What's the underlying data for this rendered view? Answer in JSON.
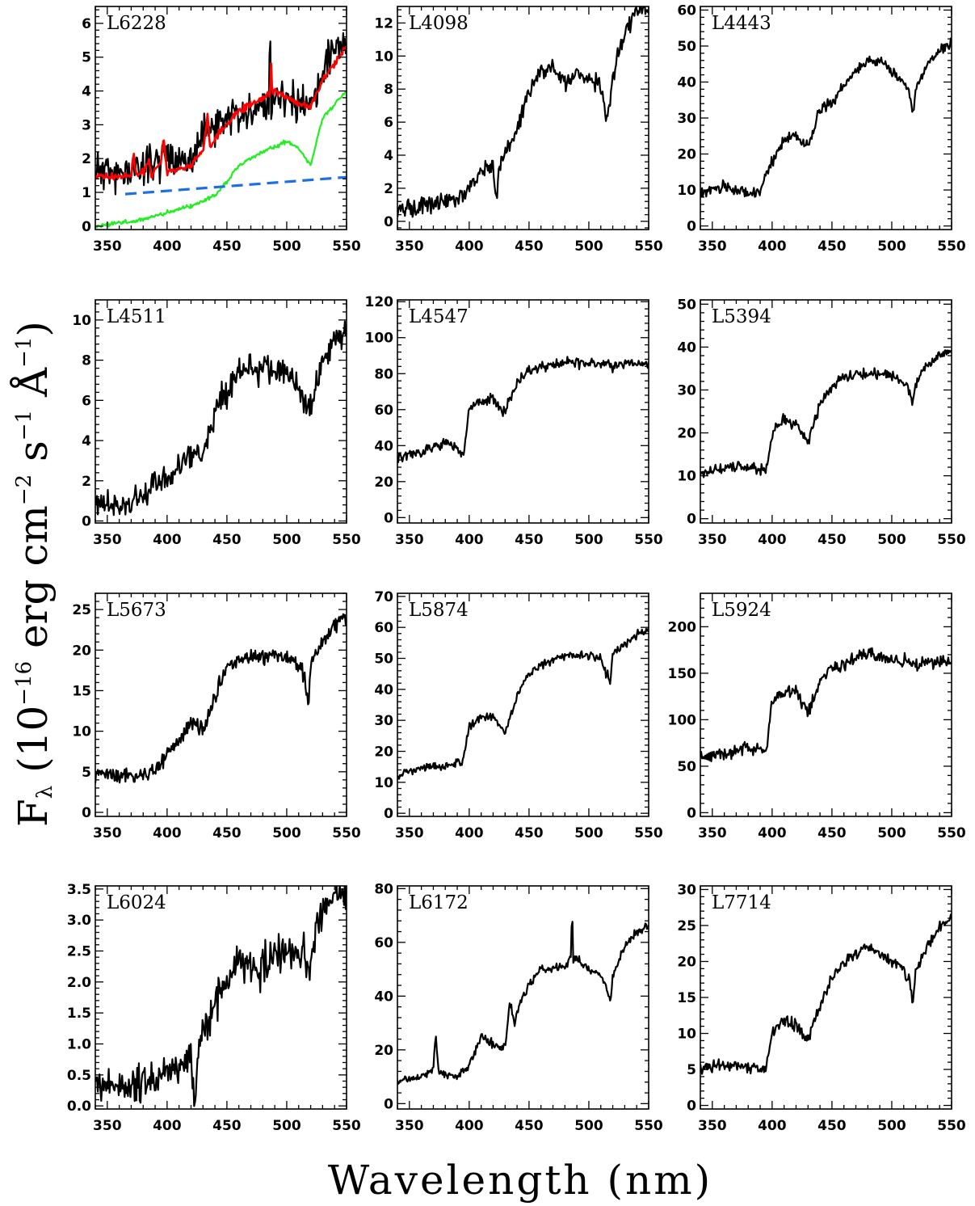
{
  "figure": {
    "xlabel": "Wavelength (nm)",
    "ylabel_main": "F",
    "ylabel_sub": "λ",
    "ylabel_rest": " (10",
    "ylabel_exp1": "−16",
    "ylabel_erg": " erg cm",
    "ylabel_exp2": "−2",
    "ylabel_s": " s",
    "ylabel_exp3": "−1",
    "ylabel_ang": " Å",
    "ylabel_exp4": "−1",
    "ylabel_close": ")"
  },
  "colors": {
    "spectrum": "#000000",
    "model": "#ff0000",
    "stellar": "#22ee22",
    "agn": "#1e6fe6"
  },
  "chart_data": [
    {
      "type": "line",
      "label": "L6228",
      "xlim": [
        340,
        550
      ],
      "ylim": [
        -0.1,
        6.5
      ],
      "xticks": [
        350,
        400,
        450,
        500,
        550
      ],
      "yticks": [
        0,
        1,
        2,
        3,
        4,
        5,
        6
      ],
      "ytick_labels": [
        "0",
        "1",
        "2",
        "3",
        "4",
        "5",
        "6"
      ],
      "series": [
        {
          "x": [
            340,
            360,
            380,
            400,
            420,
            430,
            440,
            450,
            460,
            470,
            480,
            485,
            486,
            487,
            490,
            500,
            510,
            520,
            530,
            540,
            550
          ],
          "y": [
            1.7,
            1.5,
            1.8,
            2.1,
            1.9,
            2.6,
            3.0,
            3.3,
            3.2,
            3.3,
            3.6,
            3.5,
            6.5,
            3.6,
            4.0,
            3.7,
            3.6,
            3.5,
            4.6,
            5.4,
            5.3
          ],
          "noise": 0.55,
          "seed": 11
        },
        {
          "x": [
            340,
            370,
            372,
            374,
            380,
            385,
            387,
            390,
            395,
            397,
            400,
            410,
            420,
            430,
            434,
            436,
            440,
            450,
            460,
            470,
            480,
            486,
            487,
            488,
            490,
            500,
            510,
            520,
            530,
            540,
            550
          ],
          "y": [
            1.45,
            1.5,
            2.2,
            1.5,
            1.6,
            2.0,
            1.4,
            1.7,
            1.9,
            2.6,
            1.6,
            1.7,
            1.8,
            2.2,
            3.3,
            2.3,
            2.6,
            3.0,
            3.4,
            3.6,
            3.8,
            3.9,
            4.9,
            3.9,
            4.0,
            3.8,
            3.6,
            3.5,
            4.3,
            4.8,
            5.3
          ],
          "noise": 0.1,
          "seed": 12
        },
        {
          "x": [
            340,
            360,
            380,
            400,
            420,
            440,
            450,
            460,
            480,
            500,
            510,
            520,
            530,
            540,
            550
          ],
          "y": [
            0.0,
            0.1,
            0.2,
            0.4,
            0.6,
            0.9,
            1.3,
            1.8,
            2.2,
            2.5,
            2.3,
            1.8,
            3.2,
            3.6,
            4.0
          ],
          "noise": 0.06,
          "seed": 13
        },
        {
          "x": [
            340,
            550
          ],
          "y": [
            1.4,
            1.45
          ],
          "noise": 0,
          "seed": 14
        }
      ]
    },
    {
      "type": "line",
      "label": "L4098",
      "xlim": [
        340,
        550
      ],
      "ylim": [
        -0.5,
        13
      ],
      "xticks": [
        350,
        400,
        450,
        500,
        550
      ],
      "yticks": [
        0,
        2,
        4,
        6,
        8,
        10,
        12
      ],
      "ytick_labels": [
        "0",
        "2",
        "4",
        "6",
        "8",
        "10",
        "12"
      ],
      "series": [
        {
          "x": [
            340,
            360,
            380,
            395,
            400,
            410,
            420,
            423,
            425,
            430,
            440,
            450,
            460,
            470,
            480,
            490,
            500,
            510,
            515,
            520,
            530,
            540,
            550
          ],
          "y": [
            0.6,
            1.0,
            1.2,
            1.5,
            2.0,
            3.0,
            3.3,
            1.2,
            3.3,
            4.0,
            5.5,
            8.0,
            9.0,
            9.3,
            8.3,
            9.0,
            8.6,
            8.3,
            6.0,
            8.8,
            11.5,
            12.7,
            12.8
          ],
          "noise": 0.5,
          "seed": 21
        }
      ]
    },
    {
      "type": "line",
      "label": "L4443",
      "xlim": [
        340,
        550
      ],
      "ylim": [
        -1,
        61
      ],
      "xticks": [
        350,
        400,
        450,
        500,
        550
      ],
      "yticks": [
        0,
        10,
        20,
        30,
        40,
        50,
        60
      ],
      "ytick_labels": [
        "0",
        "10",
        "20",
        "30",
        "40",
        "50",
        "60"
      ],
      "series": [
        {
          "x": [
            340,
            360,
            380,
            390,
            400,
            410,
            420,
            430,
            440,
            450,
            460,
            470,
            480,
            490,
            500,
            510,
            515,
            518,
            520,
            530,
            540,
            550
          ],
          "y": [
            9,
            11,
            9,
            10,
            18,
            24,
            25,
            22,
            32,
            34,
            39,
            43,
            46,
            46,
            43,
            40,
            37,
            31,
            38,
            45,
            49,
            51
          ],
          "noise": 1.5,
          "seed": 31
        }
      ]
    },
    {
      "type": "line",
      "label": "L4511",
      "xlim": [
        340,
        550
      ],
      "ylim": [
        -0.1,
        11
      ],
      "xticks": [
        350,
        400,
        450,
        500,
        550
      ],
      "yticks": [
        0,
        2,
        4,
        6,
        8,
        10
      ],
      "ytick_labels": [
        "0",
        "2",
        "4",
        "6",
        "8",
        "10"
      ],
      "series": [
        {
          "x": [
            340,
            360,
            380,
            400,
            420,
            430,
            440,
            450,
            460,
            470,
            480,
            490,
            500,
            510,
            515,
            520,
            530,
            540,
            550
          ],
          "y": [
            1.0,
            0.6,
            1.2,
            2.2,
            3.2,
            3.0,
            5.5,
            6.5,
            7.6,
            7.5,
            7.6,
            7.6,
            7.3,
            6.8,
            5.8,
            5.6,
            7.8,
            9.0,
            9.3
          ],
          "noise": 0.7,
          "seed": 41
        }
      ]
    },
    {
      "type": "line",
      "label": "L4547",
      "xlim": [
        340,
        550
      ],
      "ylim": [
        -3,
        121
      ],
      "xticks": [
        350,
        400,
        450,
        500,
        550
      ],
      "yticks": [
        0,
        20,
        40,
        60,
        80,
        100,
        120
      ],
      "ytick_labels": [
        "0",
        "20",
        "40",
        "60",
        "80",
        "100",
        "120"
      ],
      "series": [
        {
          "x": [
            340,
            360,
            380,
            395,
            400,
            410,
            420,
            430,
            440,
            450,
            460,
            480,
            500,
            520,
            540,
            550
          ],
          "y": [
            33,
            36,
            42,
            36,
            60,
            64,
            66,
            58,
            76,
            82,
            84,
            86,
            86,
            84,
            86,
            86
          ],
          "noise": 3,
          "seed": 51
        }
      ]
    },
    {
      "type": "line",
      "label": "L5394",
      "xlim": [
        340,
        550
      ],
      "ylim": [
        -1,
        51
      ],
      "xticks": [
        350,
        400,
        450,
        500,
        550
      ],
      "yticks": [
        0,
        10,
        20,
        30,
        40,
        50
      ],
      "ytick_labels": [
        "0",
        "10",
        "20",
        "30",
        "40",
        "50"
      ],
      "series": [
        {
          "x": [
            340,
            360,
            380,
            395,
            400,
            410,
            420,
            430,
            440,
            450,
            460,
            480,
            500,
            510,
            515,
            518,
            520,
            530,
            540,
            550
          ],
          "y": [
            10,
            12,
            12,
            11,
            20,
            23,
            22,
            18,
            27,
            31,
            33,
            34,
            33,
            32,
            30,
            27,
            32,
            36,
            38,
            39
          ],
          "noise": 1.3,
          "seed": 61
        }
      ]
    },
    {
      "type": "line",
      "label": "L5673",
      "xlim": [
        340,
        550
      ],
      "ylim": [
        -0.5,
        27
      ],
      "xticks": [
        350,
        400,
        450,
        500,
        550
      ],
      "yticks": [
        0,
        5,
        10,
        15,
        20,
        25
      ],
      "ytick_labels": [
        "0",
        "5",
        "10",
        "15",
        "20",
        "25"
      ],
      "series": [
        {
          "x": [
            340,
            360,
            380,
            400,
            420,
            430,
            440,
            450,
            460,
            470,
            480,
            490,
            500,
            510,
            515,
            518,
            520,
            530,
            540,
            550
          ],
          "y": [
            5,
            4.5,
            4.5,
            7,
            11,
            10,
            14,
            18,
            19,
            19,
            19,
            20,
            19,
            18,
            17,
            13,
            18,
            21,
            23,
            24
          ],
          "noise": 1.0,
          "seed": 71
        }
      ]
    },
    {
      "type": "line",
      "label": "L5874",
      "xlim": [
        340,
        550
      ],
      "ylim": [
        -1,
        71
      ],
      "xticks": [
        350,
        400,
        450,
        500,
        550
      ],
      "yticks": [
        0,
        10,
        20,
        30,
        40,
        50,
        60,
        70
      ],
      "ytick_labels": [
        "0",
        "10",
        "20",
        "30",
        "40",
        "50",
        "60",
        "70"
      ],
      "series": [
        {
          "x": [
            340,
            360,
            380,
            395,
            400,
            410,
            420,
            430,
            440,
            450,
            460,
            480,
            500,
            510,
            518,
            520,
            530,
            540,
            550
          ],
          "y": [
            12,
            15,
            15,
            17,
            28,
            31,
            31,
            26,
            38,
            45,
            48,
            51,
            51,
            50,
            42,
            51,
            55,
            58,
            59
          ],
          "noise": 1.5,
          "seed": 81
        }
      ]
    },
    {
      "type": "line",
      "label": "L5924",
      "xlim": [
        340,
        550
      ],
      "ylim": [
        -4,
        236
      ],
      "xticks": [
        350,
        400,
        450,
        500,
        550
      ],
      "yticks": [
        0,
        50,
        100,
        150,
        200
      ],
      "ytick_labels": [
        "0",
        "50",
        "100",
        "150",
        "200"
      ],
      "series": [
        {
          "x": [
            340,
            360,
            380,
            395,
            400,
            410,
            420,
            430,
            440,
            450,
            460,
            480,
            500,
            520,
            540,
            550
          ],
          "y": [
            60,
            62,
            70,
            65,
            120,
            130,
            132,
            105,
            145,
            155,
            160,
            172,
            165,
            160,
            162,
            165
          ],
          "noise": 7,
          "seed": 91
        }
      ]
    },
    {
      "type": "line",
      "label": "L6024",
      "xlim": [
        340,
        550
      ],
      "ylim": [
        -0.05,
        3.55
      ],
      "xticks": [
        350,
        400,
        450,
        500,
        550
      ],
      "yticks": [
        0,
        0.5,
        1.0,
        1.5,
        2.0,
        2.5,
        3.0,
        3.5
      ],
      "ytick_labels": [
        "0.0",
        "0.5",
        "1.0",
        "1.5",
        "2.0",
        "2.5",
        "3.0",
        "3.5"
      ],
      "series": [
        {
          "x": [
            340,
            360,
            380,
            400,
            410,
            420,
            423,
            426,
            430,
            440,
            450,
            460,
            470,
            480,
            490,
            500,
            510,
            520,
            525,
            530,
            540,
            550
          ],
          "y": [
            0.4,
            0.3,
            0.4,
            0.5,
            0.7,
            0.8,
            0.0,
            0.9,
            1.2,
            1.6,
            2.0,
            2.4,
            2.3,
            2.2,
            2.5,
            2.4,
            2.5,
            2.2,
            2.9,
            3.2,
            3.5,
            3.3
          ],
          "noise": 0.3,
          "seed": 101
        }
      ]
    },
    {
      "type": "line",
      "label": "L6172",
      "xlim": [
        340,
        550
      ],
      "ylim": [
        -2,
        81
      ],
      "xticks": [
        350,
        400,
        450,
        500,
        550
      ],
      "yticks": [
        0,
        20,
        40,
        60,
        80
      ],
      "ytick_labels": [
        "0",
        "20",
        "40",
        "60",
        "80"
      ],
      "series": [
        {
          "x": [
            340,
            360,
            370,
            372,
            374,
            380,
            390,
            400,
            410,
            420,
            430,
            434,
            438,
            440,
            450,
            460,
            480,
            485,
            486,
            487,
            490,
            500,
            510,
            515,
            518,
            520,
            530,
            540,
            550
          ],
          "y": [
            8,
            10,
            12,
            27,
            12,
            11,
            10,
            14,
            25,
            22,
            21,
            38,
            30,
            35,
            44,
            50,
            51,
            54,
            75,
            53,
            54,
            50,
            48,
            43,
            37,
            48,
            58,
            64,
            66
          ],
          "noise": 1.5,
          "seed": 111
        }
      ]
    },
    {
      "type": "line",
      "label": "L7714",
      "xlim": [
        340,
        550
      ],
      "ylim": [
        -0.5,
        30.5
      ],
      "xticks": [
        350,
        400,
        450,
        500,
        550
      ],
      "yticks": [
        0,
        5,
        10,
        15,
        20,
        25,
        30
      ],
      "ytick_labels": [
        "0",
        "5",
        "10",
        "15",
        "20",
        "25",
        "30"
      ],
      "series": [
        {
          "x": [
            340,
            360,
            380,
            395,
            400,
            410,
            420,
            430,
            440,
            450,
            460,
            470,
            480,
            490,
            500,
            510,
            515,
            518,
            520,
            530,
            540,
            550
          ],
          "y": [
            5,
            5.5,
            5.5,
            5,
            10,
            12,
            11,
            9,
            14,
            18,
            20,
            21,
            22,
            21,
            20,
            19,
            17,
            14,
            19,
            22,
            25,
            26
          ],
          "noise": 0.8,
          "seed": 121
        }
      ]
    }
  ]
}
